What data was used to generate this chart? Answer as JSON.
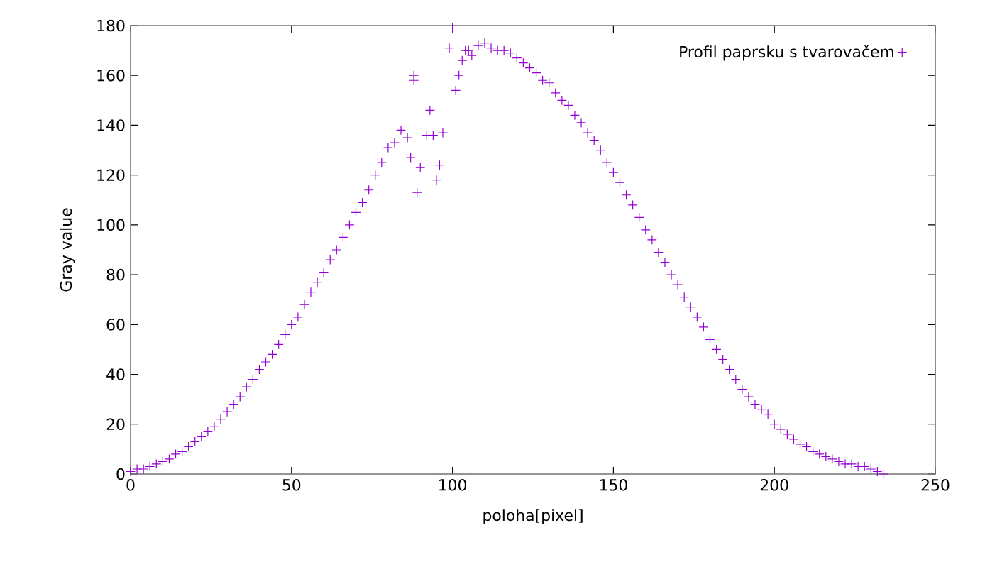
{
  "chart_data": {
    "type": "scatter",
    "xlabel": "poloha[pixel]",
    "ylabel": "Gray value",
    "xlim": [
      0,
      250
    ],
    "ylim": [
      0,
      180
    ],
    "xticks": [
      0,
      50,
      100,
      150,
      200,
      250
    ],
    "yticks": [
      0,
      20,
      40,
      60,
      80,
      100,
      120,
      140,
      160,
      180
    ],
    "marker": "cross",
    "legend": "top right",
    "series": [
      {
        "name": "Profil paprsku s tvarovačem",
        "color": "#9400d3",
        "x": [
          0,
          2,
          4,
          6,
          8,
          10,
          12,
          14,
          16,
          18,
          20,
          22,
          24,
          26,
          28,
          30,
          32,
          34,
          36,
          38,
          40,
          42,
          44,
          46,
          48,
          50,
          52,
          54,
          56,
          58,
          60,
          62,
          64,
          66,
          68,
          70,
          72,
          74,
          76,
          78,
          80,
          82,
          84,
          86,
          87,
          88,
          88,
          89,
          90,
          92,
          93,
          94,
          95,
          96,
          97,
          99,
          100,
          101,
          102,
          103,
          104,
          105,
          106,
          108,
          110,
          112,
          114,
          116,
          118,
          120,
          122,
          124,
          126,
          128,
          130,
          132,
          134,
          136,
          138,
          140,
          142,
          144,
          146,
          148,
          150,
          152,
          154,
          156,
          158,
          160,
          162,
          164,
          166,
          168,
          170,
          172,
          174,
          176,
          178,
          180,
          182,
          184,
          186,
          188,
          190,
          192,
          194,
          196,
          198,
          200,
          202,
          204,
          206,
          208,
          210,
          212,
          214,
          216,
          218,
          220,
          222,
          224,
          226,
          228,
          230,
          232,
          234
        ],
        "values": [
          1,
          2,
          2,
          3,
          4,
          5,
          6,
          8,
          9,
          11,
          13,
          15,
          17,
          19,
          22,
          25,
          28,
          31,
          35,
          38,
          42,
          45,
          48,
          52,
          56,
          60,
          63,
          68,
          73,
          77,
          81,
          86,
          90,
          95,
          100,
          105,
          109,
          114,
          120,
          125,
          131,
          133,
          138,
          135,
          127,
          158,
          160,
          113,
          123,
          136,
          146,
          136,
          118,
          124,
          137,
          171,
          179,
          154,
          160,
          166,
          170,
          170,
          168,
          172,
          173,
          171,
          170,
          170,
          169,
          167,
          165,
          163,
          161,
          158,
          157,
          153,
          150,
          148,
          144,
          141,
          137,
          134,
          130,
          125,
          121,
          117,
          112,
          108,
          103,
          98,
          94,
          89,
          85,
          80,
          76,
          71,
          67,
          63,
          59,
          54,
          50,
          46,
          42,
          38,
          34,
          31,
          28,
          26,
          24,
          20,
          18,
          16,
          14,
          12,
          11,
          9,
          8,
          7,
          6,
          5,
          4,
          4,
          3,
          3,
          2,
          1,
          0
        ]
      }
    ]
  }
}
